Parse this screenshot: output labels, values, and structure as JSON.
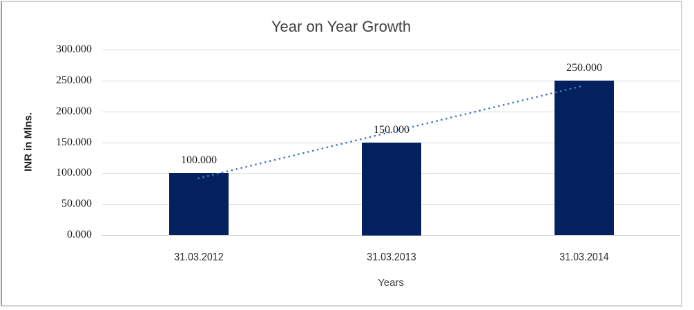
{
  "chart_data": {
    "type": "bar",
    "title": "Year on Year Growth",
    "xlabel": "Years",
    "ylabel": "INR in Mlns.",
    "categories": [
      "31.03.2012",
      "31.03.2013",
      "31.03.2014"
    ],
    "values": [
      100,
      150,
      250
    ],
    "data_labels": [
      "100.000",
      "150.000",
      "250.000"
    ],
    "ylim": [
      0,
      300
    ],
    "ytick_step": 50,
    "ytick_labels": [
      "0.000",
      "50.000",
      "100.000",
      "150.000",
      "200.000",
      "250.000",
      "300.000"
    ],
    "grid": "horizontal-only",
    "legend": "none",
    "trendline": {
      "type": "linear",
      "style": "dotted",
      "endpoint_values": [
        91.7,
        241.7
      ]
    },
    "colors": {
      "bar": "#03215E",
      "trendline": "#4678BE",
      "gridline": "#D9D9D9",
      "axis_line": "#C6C6C6",
      "title_text": "#404040",
      "tick_text": "#1C1C1C"
    }
  }
}
